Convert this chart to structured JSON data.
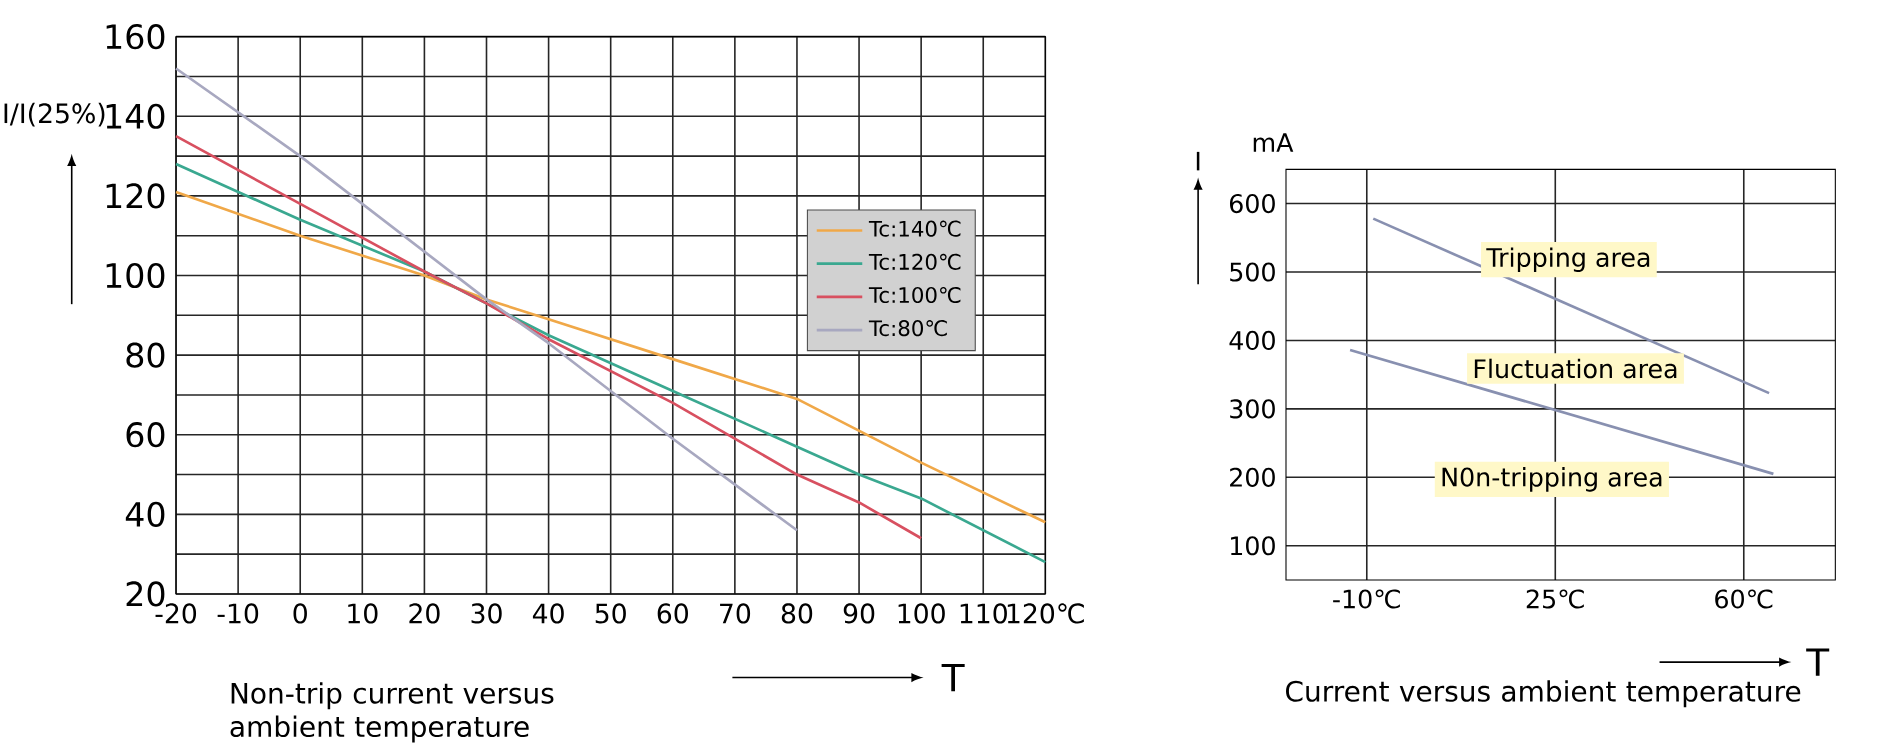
{
  "chart_data": [
    {
      "type": "line",
      "title": "Non-trip current versus ambient temperature",
      "xlabel": "T",
      "ylabel": "I/I(25%)",
      "x": [
        -20,
        0,
        20,
        30,
        40,
        60,
        80,
        90,
        100,
        120
      ],
      "xlim": [
        -20,
        120
      ],
      "ylim": [
        20,
        160
      ],
      "xticks": [
        -20,
        -10,
        0,
        10,
        20,
        30,
        40,
        50,
        60,
        70,
        80,
        90,
        100,
        110,
        {
          "value": 120,
          "label": "120℃"
        }
      ],
      "yticks": [
        20,
        40,
        60,
        80,
        100,
        120,
        140,
        160
      ],
      "grid": true,
      "legend": "right",
      "marker": "none",
      "line_style": "solid",
      "series": [
        {
          "name": "Tc:140℃",
          "color": "#f0a848",
          "values": [
            121,
            110,
            100,
            94,
            89,
            79,
            69,
            61,
            53,
            38
          ]
        },
        {
          "name": "Tc:120℃",
          "color": "#3aa890",
          "values": [
            128,
            114,
            101,
            93,
            85,
            71,
            57,
            50,
            44,
            28
          ]
        },
        {
          "name": "Tc:100℃",
          "color": "#d85060",
          "values": [
            135,
            118,
            101,
            93,
            84,
            68,
            50,
            43,
            34,
            null
          ]
        },
        {
          "name": "Tc:80℃",
          "color": "#a8a8c0",
          "values": [
            152,
            130,
            106,
            94,
            83,
            59,
            36,
            null,
            null,
            null
          ]
        }
      ]
    },
    {
      "type": "line",
      "title": "Current versus ambient temperature",
      "xlabel": "T",
      "ylabel": "I",
      "xlim": [
        -25,
        77
      ],
      "ylim": [
        50,
        650
      ],
      "xticks": [
        {
          "value": -10,
          "label": "-10℃"
        },
        {
          "value": 25,
          "label": "25℃"
        },
        {
          "value": 60,
          "label": "60℃"
        }
      ],
      "yticks": [
        100,
        200,
        300,
        400,
        500,
        600
      ],
      "grid": true,
      "legend": false,
      "marker": "none",
      "line_style": "solid",
      "annotations": [
        "mA",
        "Tripping area",
        "Fluctuation area",
        "N0n-tripping area"
      ],
      "series": [
        {
          "color": "#8890b0",
          "x": [
            -8.8,
            64.7
          ],
          "values": [
            578,
            323
          ]
        },
        {
          "color": "#8890b0",
          "x": [
            -13.1,
            65.5
          ],
          "values": [
            386,
            205
          ]
        }
      ]
    }
  ]
}
